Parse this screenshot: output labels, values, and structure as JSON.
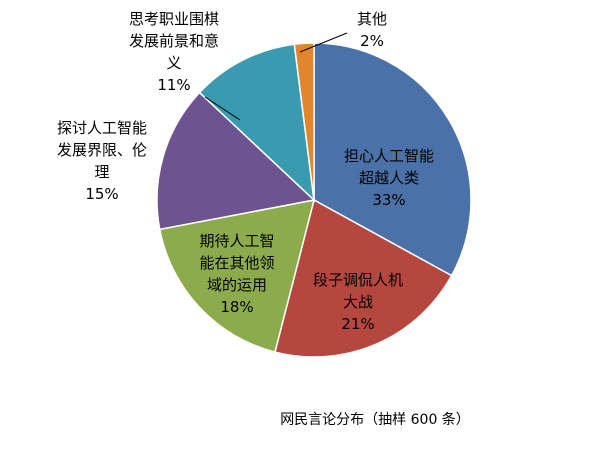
{
  "chart_data": {
    "type": "pie",
    "title": "网民言论分布（抽样 600 条）",
    "slices": [
      {
        "name": "担心人工智能超越人类",
        "label_lines": [
          "担心人工智能",
          "超越人类"
        ],
        "value": 33,
        "pct": "33%",
        "color": "#4a72a9"
      },
      {
        "name": "段子调侃人机大战",
        "label_lines": [
          "段子调侃人机",
          "大战"
        ],
        "value": 21,
        "pct": "21%",
        "color": "#b5473f"
      },
      {
        "name": "期待人工智能在其他领域的运用",
        "label_lines": [
          "期待人工智",
          "能在其他领",
          "域的运用"
        ],
        "value": 18,
        "pct": "18%",
        "color": "#8cab4c"
      },
      {
        "name": "探讨人工智能发展界限、伦理",
        "label_lines": [
          "探讨人工智能",
          "发展界限、伦",
          "理"
        ],
        "value": 15,
        "pct": "15%",
        "color": "#6e5391"
      },
      {
        "name": "思考职业围棋发展前景和意义",
        "label_lines": [
          "思考职业围棋",
          "发展前景和意",
          "义"
        ],
        "value": 11,
        "pct": "11%",
        "color": "#3a9ab0"
      },
      {
        "name": "其他",
        "label_lines": [
          "其他"
        ],
        "value": 2,
        "pct": "2%",
        "color": "#e2862e"
      }
    ]
  }
}
